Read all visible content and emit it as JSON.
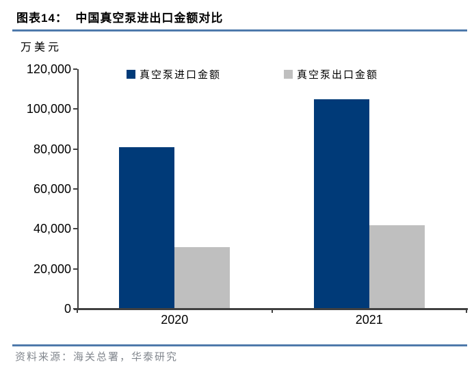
{
  "header": {
    "title": "图表14：  中国真空泵进出口金额对比"
  },
  "chart_data": {
    "type": "bar",
    "title": "中国真空泵进出口金额对比",
    "unit_label": "万美元",
    "categories": [
      "2020",
      "2021"
    ],
    "series": [
      {
        "name": "真空泵进口金额",
        "color": "#003a78",
        "values": [
          81000,
          105000
        ]
      },
      {
        "name": "真空泵出口金额",
        "color": "#bfbfbf",
        "values": [
          31000,
          42000
        ]
      }
    ],
    "ylim": [
      0,
      120000
    ],
    "ytick_step": 20000,
    "ytick_labels": [
      "0",
      "20,000",
      "40,000",
      "60,000",
      "80,000",
      "100,000",
      "120,000"
    ],
    "legend_position": "top",
    "grid": false
  },
  "footer": {
    "source_text": "资料来源：海关总署，华泰研究"
  },
  "colors": {
    "rule_blue": "#4e79ab",
    "axis": "#404040",
    "source_text": "#81868d",
    "title_text": "#000000"
  }
}
